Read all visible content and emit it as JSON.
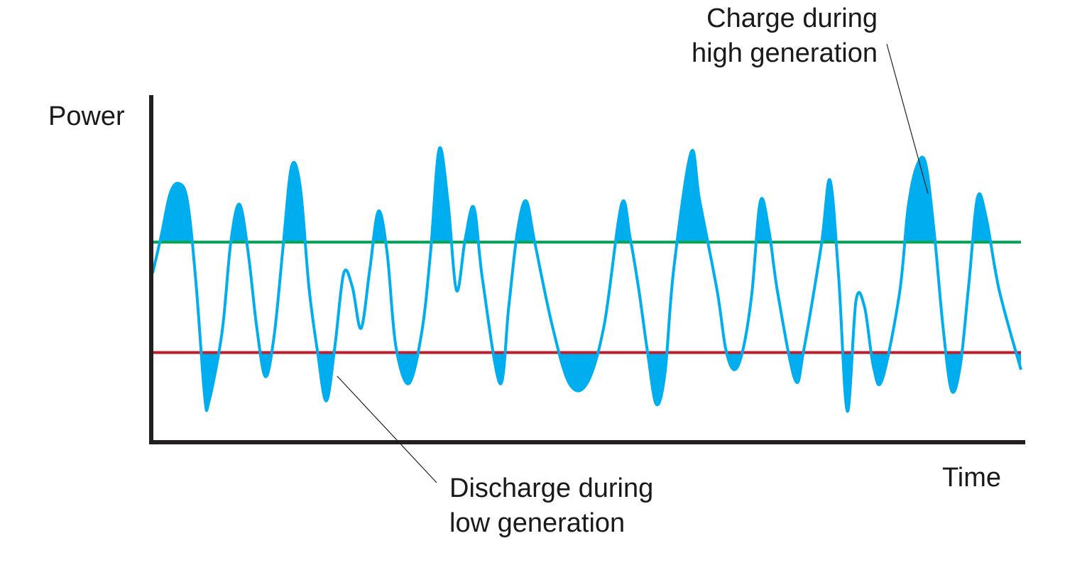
{
  "labels": {
    "y_axis": "Power",
    "x_axis": "Time",
    "charge_line1": "Charge during",
    "charge_line2": "high generation",
    "discharge_line1": "Discharge during",
    "discharge_line2": "low generation"
  },
  "colors": {
    "signal": "#00aeef",
    "high_threshold": "#00a651",
    "low_threshold": "#be1e2d",
    "axis": "#231f20",
    "text": "#1a1a1a"
  },
  "chart_data": {
    "type": "line",
    "description_free": true,
    "series": [
      {
        "values": [
          [
            0.0,
            0.49
          ],
          [
            0.01,
            0.6
          ],
          [
            0.02,
            0.72
          ],
          [
            0.03,
            0.75
          ],
          [
            0.04,
            0.7
          ],
          [
            0.05,
            0.46
          ],
          [
            0.06,
            0.13
          ],
          [
            0.065,
            0.12
          ],
          [
            0.08,
            0.32
          ],
          [
            0.09,
            0.58
          ],
          [
            0.1,
            0.69
          ],
          [
            0.11,
            0.55
          ],
          [
            0.12,
            0.33
          ],
          [
            0.13,
            0.19
          ],
          [
            0.14,
            0.31
          ],
          [
            0.15,
            0.56
          ],
          [
            0.16,
            0.8
          ],
          [
            0.17,
            0.74
          ],
          [
            0.18,
            0.45
          ],
          [
            0.19,
            0.26
          ],
          [
            0.2,
            0.12
          ],
          [
            0.21,
            0.28
          ],
          [
            0.22,
            0.49
          ],
          [
            0.23,
            0.45
          ],
          [
            0.24,
            0.33
          ],
          [
            0.25,
            0.5
          ],
          [
            0.26,
            0.67
          ],
          [
            0.27,
            0.55
          ],
          [
            0.28,
            0.28
          ],
          [
            0.295,
            0.17
          ],
          [
            0.31,
            0.32
          ],
          [
            0.32,
            0.55
          ],
          [
            0.33,
            0.85
          ],
          [
            0.34,
            0.7
          ],
          [
            0.35,
            0.44
          ],
          [
            0.36,
            0.59
          ],
          [
            0.37,
            0.68
          ],
          [
            0.38,
            0.47
          ],
          [
            0.4,
            0.17
          ],
          [
            0.41,
            0.39
          ],
          [
            0.42,
            0.61
          ],
          [
            0.43,
            0.7
          ],
          [
            0.44,
            0.58
          ],
          [
            0.46,
            0.34
          ],
          [
            0.48,
            0.17
          ],
          [
            0.5,
            0.17
          ],
          [
            0.52,
            0.34
          ],
          [
            0.54,
            0.69
          ],
          [
            0.55,
            0.59
          ],
          [
            0.56,
            0.44
          ],
          [
            0.57,
            0.26
          ],
          [
            0.58,
            0.11
          ],
          [
            0.59,
            0.2
          ],
          [
            0.6,
            0.5
          ],
          [
            0.62,
            0.84
          ],
          [
            0.63,
            0.7
          ],
          [
            0.65,
            0.44
          ],
          [
            0.66,
            0.27
          ],
          [
            0.67,
            0.21
          ],
          [
            0.68,
            0.27
          ],
          [
            0.69,
            0.43
          ],
          [
            0.7,
            0.7
          ],
          [
            0.71,
            0.61
          ],
          [
            0.72,
            0.43
          ],
          [
            0.74,
            0.18
          ],
          [
            0.75,
            0.27
          ],
          [
            0.77,
            0.57
          ],
          [
            0.78,
            0.76
          ],
          [
            0.79,
            0.48
          ],
          [
            0.8,
            0.09
          ],
          [
            0.81,
            0.41
          ],
          [
            0.82,
            0.39
          ],
          [
            0.83,
            0.22
          ],
          [
            0.84,
            0.18
          ],
          [
            0.86,
            0.43
          ],
          [
            0.87,
            0.68
          ],
          [
            0.88,
            0.8
          ],
          [
            0.89,
            0.81
          ],
          [
            0.9,
            0.61
          ],
          [
            0.91,
            0.34
          ],
          [
            0.92,
            0.15
          ],
          [
            0.93,
            0.22
          ],
          [
            0.94,
            0.46
          ],
          [
            0.95,
            0.71
          ],
          [
            0.96,
            0.65
          ],
          [
            0.975,
            0.44
          ],
          [
            1.0,
            0.21
          ]
        ]
      }
    ],
    "thresholds": {
      "high": 0.58,
      "low": 0.26
    },
    "xlabel": "Time",
    "ylabel": "Power",
    "xlim": [
      0,
      1
    ],
    "ylim": [
      0,
      1
    ],
    "fill_above_high": true,
    "fill_below_low": true,
    "grid": false,
    "ticks": false
  }
}
